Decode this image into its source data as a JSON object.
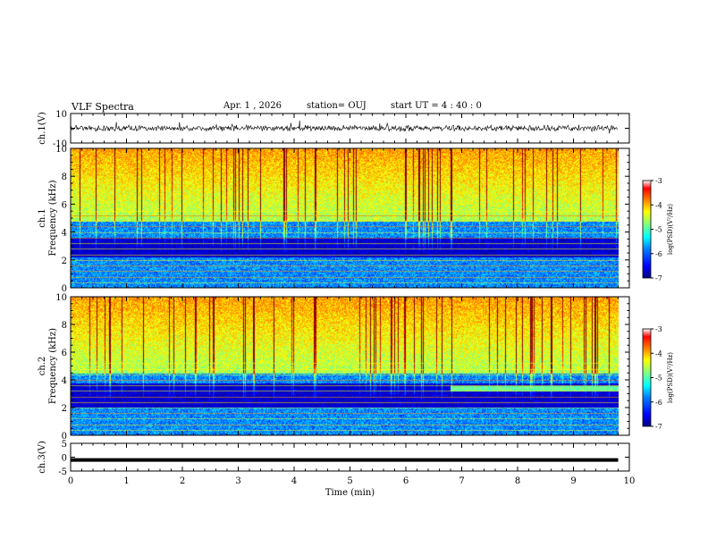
{
  "header": {
    "title": "VLF Spectra",
    "date": "Apr. 1 , 2026",
    "station": "station= OUJ",
    "start_ut": "start UT = 4 : 40 : 0"
  },
  "colors": {
    "colormap": [
      "#00007f",
      "#0000ff",
      "#0080ff",
      "#00ffff",
      "#80ff80",
      "#ffff00",
      "#ff8000",
      "#ff0000",
      "#7f0000"
    ],
    "trace": "#000000",
    "background": "#ffffff"
  },
  "chart_data": [
    {
      "type": "line",
      "id": "ch1-waveform",
      "ylabel": "ch.1(V)",
      "ylim": [
        -10,
        10
      ],
      "yticks": [
        "10",
        "-10"
      ],
      "x": [
        0,
        9.8
      ],
      "y_center": 0,
      "y_noise_amplitude": 2
    },
    {
      "type": "heatmap",
      "id": "ch1-spectrogram",
      "ylabel_line1": "ch.1",
      "ylabel_line2": "Frequency (kHz)",
      "ylim": [
        0,
        10
      ],
      "yticks": [
        "0",
        "2",
        "4",
        "6",
        "8",
        "10"
      ],
      "xlim": [
        0,
        10
      ],
      "data_xmax": 9.8,
      "colorbar": {
        "label": "log(PSD)(V²/Hz)",
        "ticks": [
          "-3",
          "-4",
          "-5",
          "-6",
          "-7"
        ],
        "range": [
          -7,
          -3
        ]
      },
      "features": {
        "dark_band_khz": [
          2.2,
          3.6
        ],
        "noise_floor_khz": 4.8,
        "horizontal_lines_khz": [
          0.4,
          0.8,
          1.2,
          1.6,
          2.0,
          2.4,
          2.8,
          3.2,
          3.6,
          4.0,
          4.4,
          4.8,
          5.2,
          5.5
        ]
      }
    },
    {
      "type": "heatmap",
      "id": "ch2-spectrogram",
      "ylabel_line1": "ch.2",
      "ylabel_line2": "Frequency (kHz)",
      "ylim": [
        0,
        10
      ],
      "yticks": [
        "0",
        "2",
        "4",
        "6",
        "8",
        "10"
      ],
      "xlim": [
        0,
        10
      ],
      "data_xmax": 9.8,
      "colorbar": {
        "label": "log(PSD)(V²/Hz)",
        "ticks": [
          "-3",
          "-4",
          "-5",
          "-6",
          "-7"
        ],
        "range": [
          -7,
          -3
        ]
      },
      "features": {
        "dark_band_khz": [
          2.0,
          3.8
        ],
        "noise_floor_khz": 4.5,
        "emission_band_khz": [
          3.2,
          3.6
        ],
        "emission_band_start_min": 6.8,
        "horizontal_lines_khz": [
          0.4,
          0.8,
          1.2,
          1.6,
          2.0,
          2.4,
          2.8,
          3.2,
          3.6,
          4.0,
          4.4,
          4.8,
          5.2
        ]
      }
    },
    {
      "type": "line",
      "id": "ch3-waveform",
      "ylabel": "ch.3(V)",
      "ylim": [
        -5,
        5
      ],
      "yticks": [
        "5",
        "0",
        "-5"
      ],
      "x": [
        0,
        9.8
      ],
      "y_center": -1
    }
  ],
  "xaxis": {
    "label": "Time (min)",
    "ticks": [
      "0",
      "1",
      "2",
      "3",
      "4",
      "5",
      "6",
      "7",
      "8",
      "9",
      "10"
    ]
  }
}
